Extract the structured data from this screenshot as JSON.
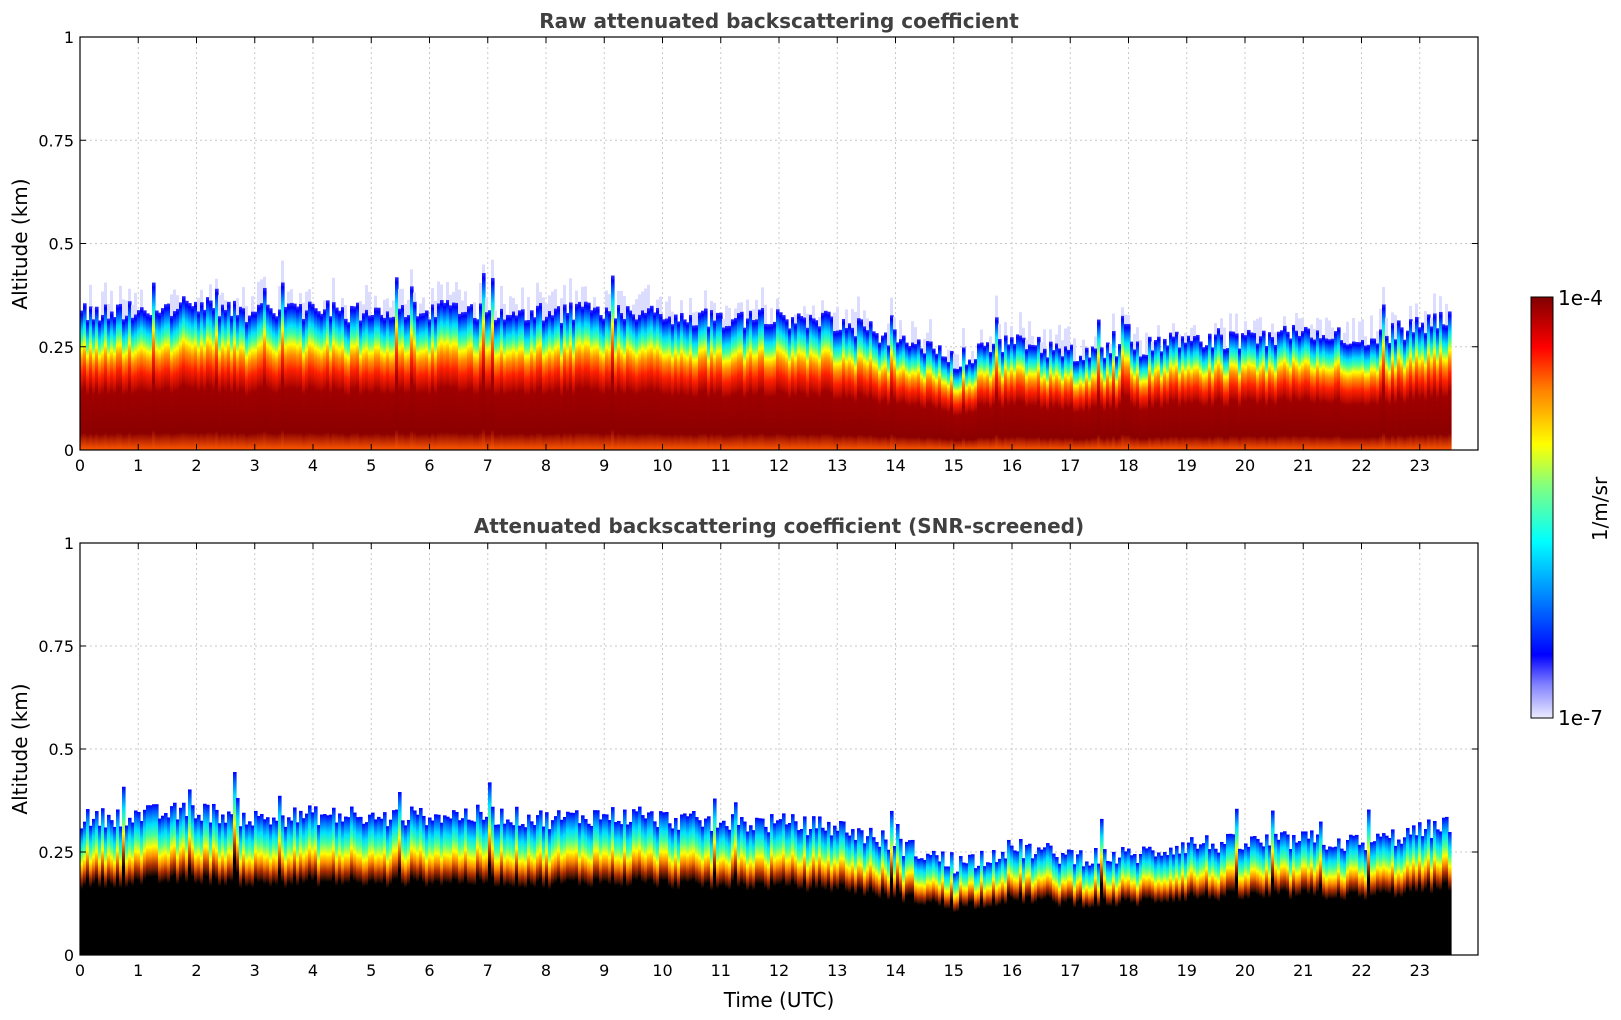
{
  "chart_data": [
    {
      "type": "heatmap",
      "title": "Raw attenuated backscattering coefficient",
      "xlabel": "",
      "ylabel": "Altitude (km)",
      "xlim": [
        0,
        24
      ],
      "ylim": [
        0,
        1
      ],
      "x_ticks": [
        "0",
        "1",
        "2",
        "3",
        "4",
        "5",
        "6",
        "7",
        "8",
        "9",
        "10",
        "11",
        "12",
        "13",
        "14",
        "15",
        "16",
        "17",
        "18",
        "19",
        "20",
        "21",
        "22",
        "23"
      ],
      "y_ticks": [
        "0",
        "0.25",
        "0.5",
        "0.75",
        "1"
      ],
      "y_tick_values": [
        0,
        0.25,
        0.5,
        0.75,
        1
      ],
      "grid": true,
      "data_end_hour": 23.5,
      "screened": false,
      "layer_top_km": {
        "hours": [
          0,
          1,
          2,
          3,
          4,
          5,
          6,
          7,
          8,
          9,
          10,
          11,
          12,
          13,
          14,
          15,
          16,
          17,
          18,
          19,
          20,
          21,
          22,
          23,
          23.5
        ],
        "values": [
          0.33,
          0.34,
          0.35,
          0.33,
          0.34,
          0.33,
          0.34,
          0.34,
          0.33,
          0.34,
          0.33,
          0.32,
          0.32,
          0.31,
          0.27,
          0.22,
          0.26,
          0.24,
          0.24,
          0.27,
          0.27,
          0.28,
          0.27,
          0.3,
          0.32
        ]
      }
    },
    {
      "type": "heatmap",
      "title": "Attenuated backscattering coefficient (SNR-screened)",
      "xlabel": "Time (UTC)",
      "ylabel": "Altitude (km)",
      "xlim": [
        0,
        24
      ],
      "ylim": [
        0,
        1
      ],
      "x_ticks": [
        "0",
        "1",
        "2",
        "3",
        "4",
        "5",
        "6",
        "7",
        "8",
        "9",
        "10",
        "11",
        "12",
        "13",
        "14",
        "15",
        "16",
        "17",
        "18",
        "19",
        "20",
        "21",
        "22",
        "23"
      ],
      "y_ticks": [
        "0",
        "0.25",
        "0.5",
        "0.75",
        "1"
      ],
      "y_tick_values": [
        0,
        0.25,
        0.5,
        0.75,
        1
      ],
      "grid": true,
      "data_end_hour": 23.5,
      "screened": true,
      "layer_top_km": {
        "hours": [
          0,
          1,
          2,
          3,
          4,
          5,
          6,
          7,
          8,
          9,
          10,
          11,
          12,
          13,
          14,
          15,
          16,
          17,
          18,
          19,
          20,
          21,
          22,
          23,
          23.5
        ],
        "values": [
          0.33,
          0.34,
          0.35,
          0.33,
          0.34,
          0.33,
          0.34,
          0.34,
          0.33,
          0.34,
          0.33,
          0.32,
          0.32,
          0.31,
          0.27,
          0.22,
          0.26,
          0.24,
          0.24,
          0.27,
          0.27,
          0.28,
          0.27,
          0.3,
          0.32
        ]
      }
    }
  ],
  "colorbar": {
    "label": "1/m/sr",
    "min_label": "1e-7",
    "max_label": "1e-4",
    "scale": "log",
    "colors": [
      "#e8e8ff",
      "#0000ff",
      "#00ffff",
      "#ffff00",
      "#ff0000",
      "#800000"
    ]
  }
}
